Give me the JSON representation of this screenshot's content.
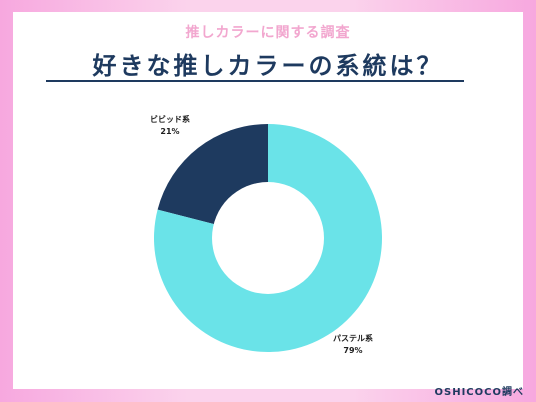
{
  "header": {
    "subtitle": "推しカラーに関する調査",
    "title": "好きな推しカラーの系統は？"
  },
  "footer": {
    "source": "OSHICOCO調べ"
  },
  "colors": {
    "background": "#fbd3ec",
    "accent_pink": "#f2a7cf",
    "navy": "#1e3a5f",
    "pastel": "#6ae3e8"
  },
  "chart_data": {
    "type": "pie",
    "donut": true,
    "categories": [
      "ビビッド系",
      "パステル系"
    ],
    "values": [
      21,
      79
    ],
    "value_labels": [
      "21%",
      "79%"
    ],
    "colors": [
      "#1e3a5f",
      "#6ae3e8"
    ]
  }
}
